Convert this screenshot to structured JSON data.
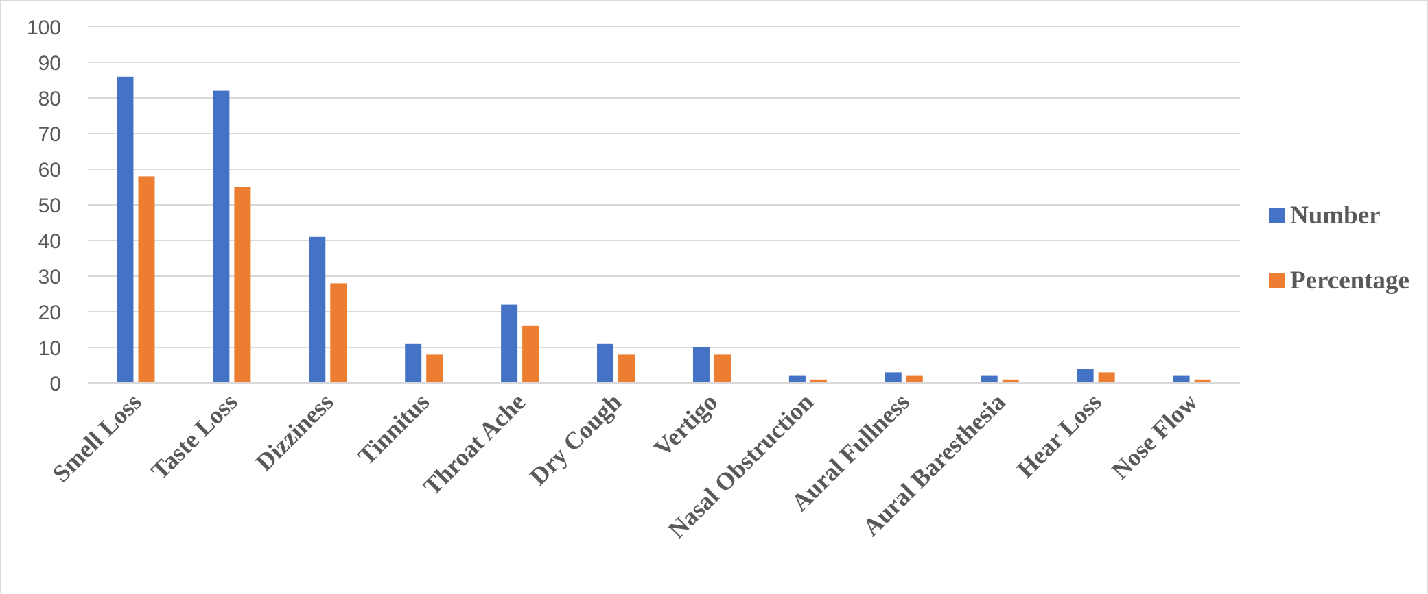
{
  "chart_data": {
    "type": "bar",
    "categories": [
      "Smell Loss",
      "Taste Loss",
      "Dizziness",
      "Tinnitus",
      "Throat Ache",
      "Dry Cough",
      "Vertigo",
      "Nasal Obstruction",
      "Aural Fullness",
      "Aural Baresthesia",
      "Hear Loss",
      "Nose Flow"
    ],
    "series": [
      {
        "name": "Number",
        "color": "#4472c4",
        "values": [
          86,
          82,
          41,
          11,
          22,
          11,
          10,
          2,
          3,
          2,
          4,
          2
        ]
      },
      {
        "name": "Percentage",
        "color": "#ed7d31",
        "values": [
          58,
          55,
          28,
          8,
          16,
          8,
          8,
          1,
          2,
          1,
          3,
          1
        ]
      }
    ],
    "title": "",
    "xlabel": "",
    "ylabel": "",
    "ylim": [
      0,
      100
    ],
    "yticks": [
      0,
      10,
      20,
      30,
      40,
      50,
      60,
      70,
      80,
      90,
      100
    ],
    "grid": true,
    "legend_position": "right"
  }
}
